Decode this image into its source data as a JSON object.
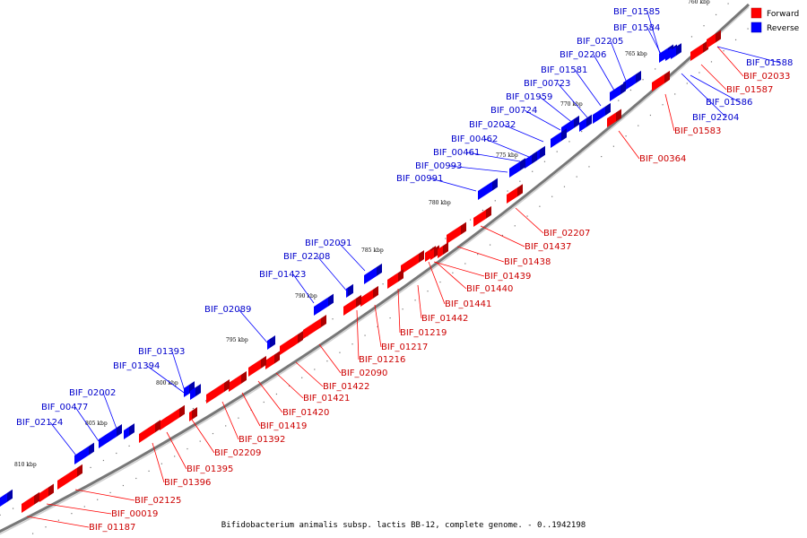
{
  "caption": "Bifidobacterium animalis subsp. lactis BB-12, complete genome. - 0..1942198",
  "legend": [
    {
      "label": "Forward",
      "color": "#ff0000"
    },
    {
      "label": "Reverse",
      "color": "#0000ff"
    }
  ],
  "colors": {
    "forward": "#ff0000",
    "reverse": "#0000ff",
    "backbone": "#888888"
  },
  "ticks": [
    "760 kbp",
    "765 kbp",
    "770 kbp",
    "775 kbp",
    "780 kbp",
    "785 kbp",
    "790 kbp",
    "795 kbp",
    "800 kbp",
    "805 kbp",
    "810 kbp"
  ],
  "reverse_genes": [
    "BIF_01585",
    "BIF_01584",
    "BIF_02205",
    "BIF_02206",
    "BIF_01581",
    "BIF_00723",
    "BIF_01959",
    "BIF_00724",
    "BIF_02032",
    "BIF_00462",
    "BIF_00461",
    "BIF_00993",
    "BIF_00991",
    "BIF_02091",
    "BIF_02208",
    "BIF_01423",
    "BIF_02089",
    "BIF_01393",
    "BIF_01394",
    "BIF_02002",
    "BIF_00477",
    "BIF_02124",
    "BIF_01588",
    "BIF_01586",
    "BIF_02204"
  ],
  "forward_genes": [
    "BIF_02033",
    "BIF_01587",
    "BIF_01583",
    "BIF_00364",
    "BIF_02207",
    "BIF_01437",
    "BIF_01438",
    "BIF_01439",
    "BIF_01440",
    "BIF_01441",
    "BIF_01442",
    "BIF_01219",
    "BIF_01217",
    "BIF_01216",
    "BIF_02090",
    "BIF_01422",
    "BIF_01421",
    "BIF_01420",
    "BIF_01419",
    "BIF_01392",
    "BIF_02209",
    "BIF_01395",
    "BIF_01396",
    "BIF_02125",
    "BIF_00019",
    "BIF_01187"
  ]
}
